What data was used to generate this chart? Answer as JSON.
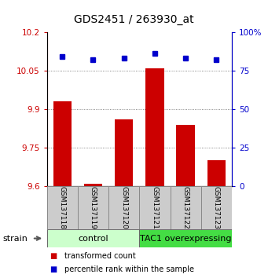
{
  "title": "GDS2451 / 263930_at",
  "samples": [
    "GSM137118",
    "GSM137119",
    "GSM137120",
    "GSM137121",
    "GSM137122",
    "GSM137123"
  ],
  "transformed_counts": [
    9.93,
    9.61,
    9.86,
    10.06,
    9.84,
    9.7
  ],
  "percentile_ranks": [
    84,
    82,
    83,
    86,
    83,
    82
  ],
  "ylim_left": [
    9.6,
    10.2
  ],
  "ylim_right": [
    0,
    100
  ],
  "yticks_left": [
    9.6,
    9.75,
    9.9,
    10.05,
    10.2
  ],
  "yticks_right": [
    0,
    25,
    50,
    75,
    100
  ],
  "ytick_labels_left": [
    "9.6",
    "9.75",
    "9.9",
    "10.05",
    "10.2"
  ],
  "ytick_labels_right": [
    "0",
    "25",
    "50",
    "75",
    "100%"
  ],
  "bar_color": "#cc0000",
  "dot_color": "#0000cc",
  "groups": [
    {
      "label": "control",
      "indices": [
        0,
        1,
        2
      ],
      "color": "#ccffcc"
    },
    {
      "label": "TAC1 overexpressing",
      "indices": [
        3,
        4,
        5
      ],
      "color": "#44dd44"
    }
  ],
  "strain_label": "strain",
  "legend_bar_label": "transformed count",
  "legend_dot_label": "percentile rank within the sample",
  "grid_color": "#444444",
  "sample_box_color": "#cccccc",
  "title_fontsize": 10,
  "tick_fontsize": 7.5,
  "sample_fontsize": 6.5,
  "group_fontsize": 8,
  "legend_fontsize": 7,
  "strain_fontsize": 8
}
